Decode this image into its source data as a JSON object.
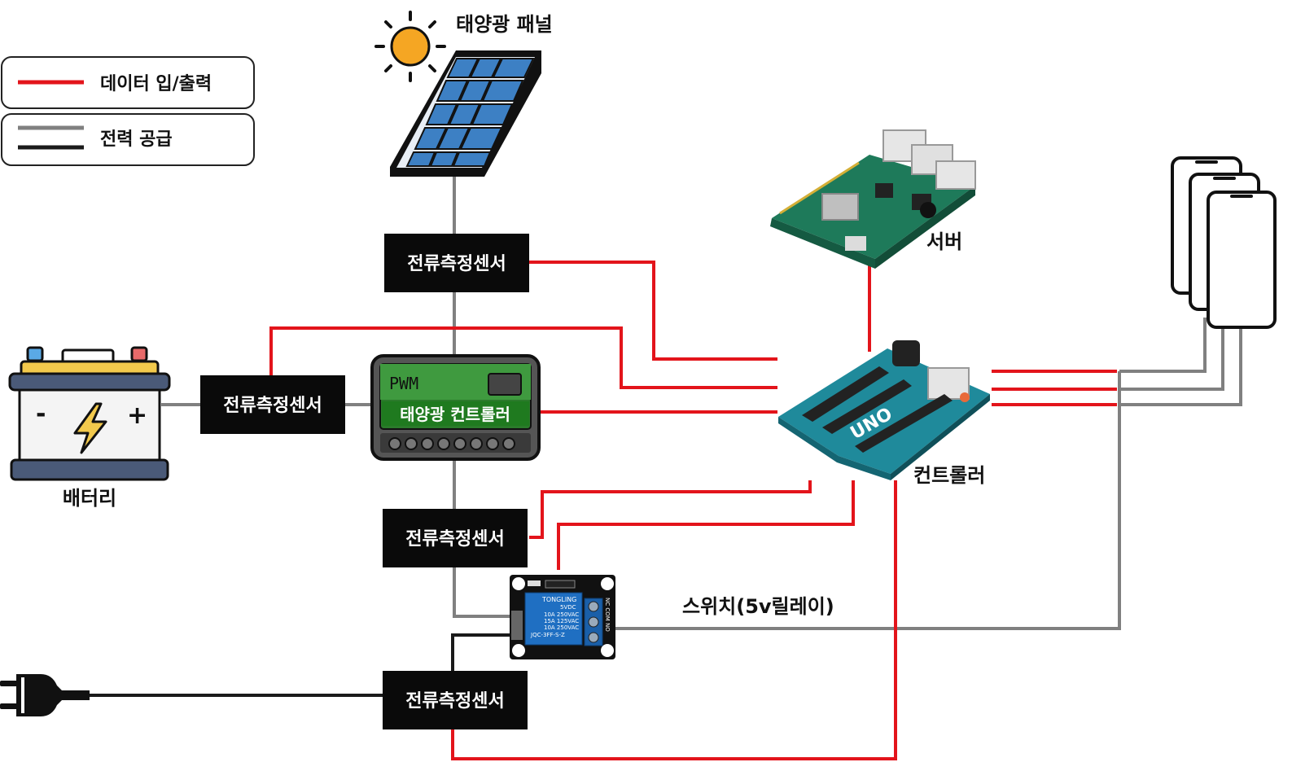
{
  "legend": {
    "data_io": "데이터 입/출력",
    "power": "전력 공급"
  },
  "labels": {
    "solar_panel": "태양광 패널",
    "server": "서버",
    "battery": "배터리",
    "controller": "컨트롤러",
    "relay": "스위치(5v릴레이)"
  },
  "sensors": {
    "s1": "전류측정센서",
    "s2": "전류측정센서",
    "s3": "전류측정센서",
    "s4": "전류측정센서"
  },
  "solar_controller": {
    "pwm": "PWM",
    "name": "태양광 컨트롤러"
  },
  "arduino": {
    "badge": "UNO"
  },
  "battery_terms": {
    "minus": "-",
    "plus": "+"
  },
  "relay_module": {
    "brand": "TONGLING",
    "line1": "5VDC",
    "line2": "10A 250VAC",
    "line3": "15A 125VAC",
    "line4": "10A 250VAC",
    "model": "JQC-3FF-S-Z",
    "terminals": "NC COM NO"
  },
  "colors": {
    "data_line": "#e3141b",
    "power_gray": "#808080",
    "power_black": "#1a1a1a",
    "sensor_box": "#0a0a0a",
    "panel_cell": "#3d80c4",
    "board_green": "#2e8b57",
    "arduino_teal": "#1f8a9b",
    "controller_green": "#1f7a1f",
    "sun": "#f5a623"
  }
}
